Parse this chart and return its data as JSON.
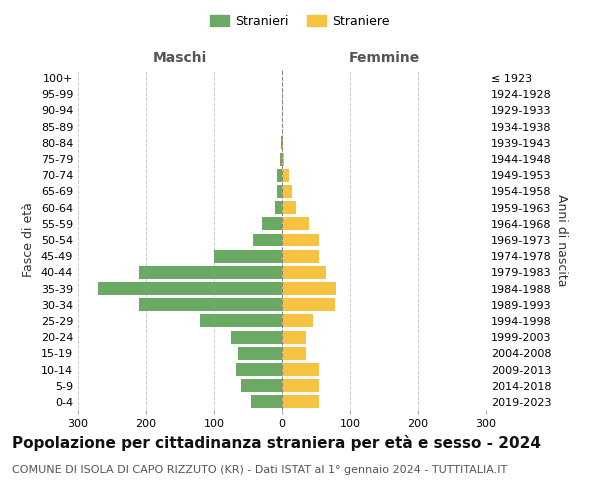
{
  "age_groups": [
    "0-4",
    "5-9",
    "10-14",
    "15-19",
    "20-24",
    "25-29",
    "30-34",
    "35-39",
    "40-44",
    "45-49",
    "50-54",
    "55-59",
    "60-64",
    "65-69",
    "70-74",
    "75-79",
    "80-84",
    "85-89",
    "90-94",
    "95-99",
    "100+"
  ],
  "birth_years": [
    "2019-2023",
    "2014-2018",
    "2009-2013",
    "2004-2008",
    "1999-2003",
    "1994-1998",
    "1989-1993",
    "1984-1988",
    "1979-1983",
    "1974-1978",
    "1969-1973",
    "1964-1968",
    "1959-1963",
    "1954-1958",
    "1949-1953",
    "1944-1948",
    "1939-1943",
    "1934-1938",
    "1929-1933",
    "1924-1928",
    "≤ 1923"
  ],
  "males": [
    45,
    60,
    68,
    65,
    75,
    120,
    210,
    270,
    210,
    100,
    42,
    30,
    10,
    7,
    8,
    3,
    2,
    0,
    0,
    0,
    0
  ],
  "females": [
    55,
    55,
    55,
    35,
    35,
    45,
    78,
    80,
    65,
    55,
    55,
    40,
    20,
    15,
    10,
    3,
    2,
    0,
    0,
    0,
    0
  ],
  "male_color": "#6aaa64",
  "female_color": "#f5c242",
  "grid_color": "#cccccc",
  "grid_linestyle": "--",
  "background_color": "#ffffff",
  "title": "Popolazione per cittadinanza straniera per età e sesso - 2024",
  "subtitle": "COMUNE DI ISOLA DI CAPO RIZZUTO (KR) - Dati ISTAT al 1° gennaio 2024 - TUTTITALIA.IT",
  "ylabel_left": "Fasce di età",
  "ylabel_right": "Anni di nascita",
  "xlabel_left": "Maschi",
  "xlabel_right": "Femmine",
  "legend_male": "Stranieri",
  "legend_female": "Straniere",
  "xlim": 300,
  "xticks": [
    -300,
    -200,
    -100,
    0,
    100,
    200,
    300
  ],
  "xticklabels": [
    "300",
    "200",
    "100",
    "0",
    "100",
    "200",
    "300"
  ],
  "title_fontsize": 11,
  "subtitle_fontsize": 8,
  "tick_fontsize": 8,
  "label_fontsize": 9,
  "bar_height": 0.8
}
